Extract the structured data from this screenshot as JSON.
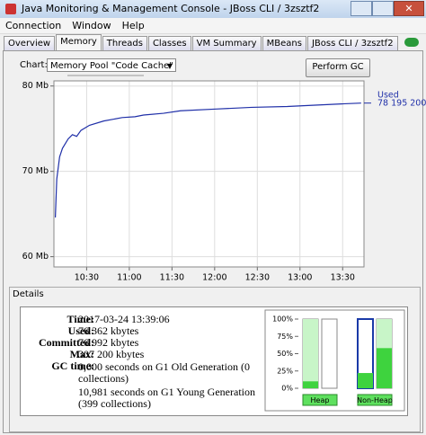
{
  "window": {
    "title": "Java Monitoring & Management Console - JBoss CLI / 3zsztf2"
  },
  "menu": [
    "Connection",
    "Window",
    "Help"
  ],
  "tabs": [
    "Overview",
    "Memory",
    "Threads",
    "Classes",
    "VM Summary",
    "MBeans",
    "JBoss CLI / 3zsztf2"
  ],
  "selected_tab": 1,
  "controls": {
    "chart_label": "Chart:",
    "chart_select": "Memory Pool \"Code Cache\"",
    "gc_button": "Perform GC"
  },
  "chart_data": {
    "type": "line",
    "x": [
      "10:08",
      "10:09",
      "10:11",
      "10:13",
      "10:17",
      "10:20",
      "10:23",
      "10:26",
      "10:32",
      "10:42",
      "10:55",
      "11:04",
      "11:10",
      "11:24",
      "11:36",
      "12:01",
      "12:26",
      "12:51",
      "13:04",
      "13:29",
      "13:43"
    ],
    "series": [
      {
        "name": "Used",
        "color": "#1f2fa8",
        "values": [
          64.6,
          69.1,
          71.7,
          72.7,
          73.8,
          74.3,
          74.1,
          74.8,
          75.4,
          75.9,
          76.3,
          76.4,
          76.6,
          76.8,
          77.1,
          77.3,
          77.5,
          77.6,
          77.7,
          77.9,
          78.0
        ]
      }
    ],
    "end_label": "78 195 200",
    "xlim": [
      "10:07",
      "13:45"
    ],
    "xticks": [
      "10:30",
      "11:00",
      "11:30",
      "12:00",
      "12:30",
      "13:00",
      "13:30"
    ],
    "ylim": [
      58.8,
      80.6
    ],
    "yticks": [
      {
        "value": 60,
        "label": "60 Mb"
      },
      {
        "value": 70,
        "label": "70 Mb"
      },
      {
        "value": 80,
        "label": "80 Mb"
      }
    ]
  },
  "details": {
    "title": "Details",
    "rows": [
      {
        "label": "Time:",
        "value": "2017-03-24 13:39:06"
      },
      {
        "label": "Used:",
        "value": "76 362 kbytes"
      },
      {
        "label": "Committed:",
        "value": "76 992 kbytes"
      },
      {
        "label": "Max:",
        "value": "307 200 kbytes"
      }
    ],
    "gc_label": "GC time:",
    "gc": [
      "0,000 seconds on G1 Old Generation (0 collections)",
      "10,981 seconds on G1 Young Generation (399 collections)"
    ]
  },
  "pools_chart": {
    "type": "bar",
    "ylim": [
      0,
      100
    ],
    "yticks": [
      {
        "value": 100,
        "label": "100%"
      },
      {
        "value": 75,
        "label": "75%"
      },
      {
        "value": 50,
        "label": "50%"
      },
      {
        "value": 25,
        "label": "25%"
      },
      {
        "value": 0,
        "label": "0%"
      }
    ],
    "used": [
      10,
      0,
      22,
      58
    ],
    "committed": [
      100,
      0,
      22,
      100
    ],
    "groups": [
      "Heap",
      "Non-Heap"
    ]
  }
}
